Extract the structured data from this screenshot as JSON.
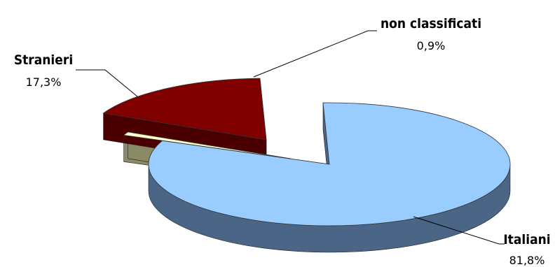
{
  "chart_data": {
    "type": "pie",
    "style": "3d-exploded",
    "slices": [
      {
        "name": "Italiani",
        "value": 81.8,
        "label": "81,8%",
        "color": "#99CCFF",
        "side_color": "#4A6585"
      },
      {
        "name": "non classificati",
        "value": 0.9,
        "label": "0,9%",
        "color": "#FFFFCC",
        "side_color": "#8A8A66"
      },
      {
        "name": "Stranieri",
        "value": 17.3,
        "label": "17,3%",
        "color": "#800000",
        "side_color": "#4A0000"
      }
    ],
    "legend": "none",
    "data_labels": "outside-with-leader-lines"
  }
}
